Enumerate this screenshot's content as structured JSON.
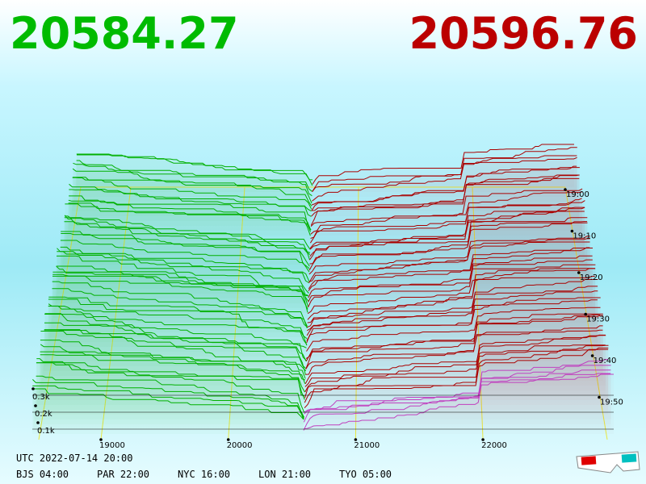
{
  "header": {
    "bid": "20584.27",
    "ask": "20596.76"
  },
  "axes": {
    "price_ticks": [
      "19000",
      "20000",
      "21000",
      "22000"
    ],
    "depth_ticks": [
      "0.3k",
      "0.2k",
      "0.1k"
    ],
    "time_ticks": [
      "19:00",
      "19:10",
      "19:20",
      "19:30",
      "19:40",
      "19:50"
    ]
  },
  "footer": {
    "utc": "UTC 2022-07-14 20:00",
    "zones": [
      "BJS 04:00",
      "PAR 22:00",
      "NYC 16:00",
      "LON 21:00",
      "TYO 05:00"
    ]
  }
}
